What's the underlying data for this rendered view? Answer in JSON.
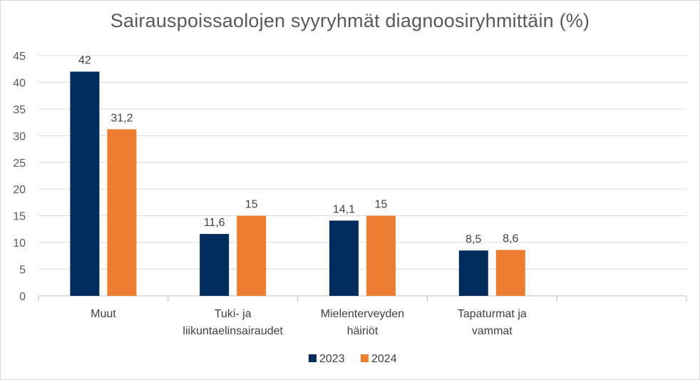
{
  "chart_data": {
    "type": "bar",
    "title": "Sairauspoissaolojen syyryhmät diagnoosiryhmittäin (%)",
    "categories": [
      [
        "Muut"
      ],
      [
        "Tuki- ja",
        "liikuntaelinsairaudet"
      ],
      [
        "Mielenterveyden",
        "häiriöt"
      ],
      [
        "Tapaturmat ja",
        "vammat"
      ],
      [
        ""
      ]
    ],
    "series": [
      {
        "name": "2023",
        "color": "#002d5c",
        "values": [
          42,
          11.6,
          14.1,
          8.5,
          null
        ],
        "labels": [
          "42",
          "11,6",
          "14,1",
          "8,5",
          ""
        ]
      },
      {
        "name": "2024",
        "color": "#ed7d31",
        "values": [
          31.2,
          15,
          15,
          8.6,
          null
        ],
        "labels": [
          "31,2",
          "15",
          "15",
          "8,6",
          ""
        ]
      }
    ],
    "ylim": [
      0,
      45
    ],
    "yticks": [
      0,
      5,
      10,
      15,
      20,
      25,
      30,
      35,
      40,
      45
    ],
    "grid": true,
    "legend": "bottom",
    "xlabel": "",
    "ylabel": ""
  }
}
